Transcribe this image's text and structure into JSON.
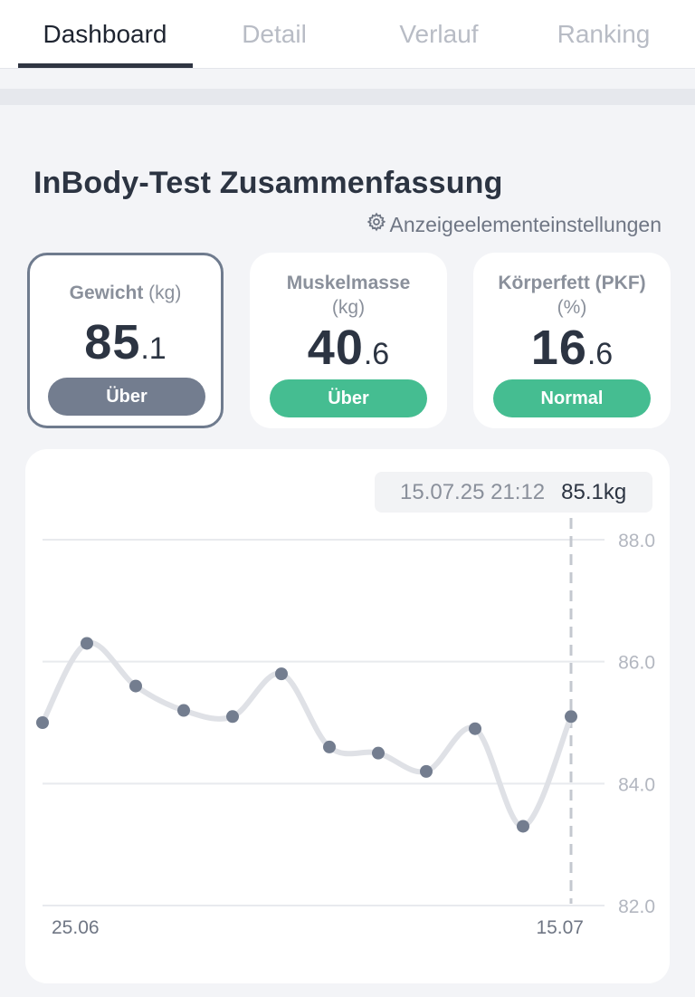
{
  "tabs": [
    {
      "label": "Dashboard",
      "active": true
    },
    {
      "label": "Detail",
      "active": false
    },
    {
      "label": "Verlauf",
      "active": false
    },
    {
      "label": "Ranking",
      "active": false
    }
  ],
  "section": {
    "title": "InBody-Test Zusammenfassung",
    "settings_label": "Anzeigeelementeinstellungen",
    "settings_icon": "gear-icon"
  },
  "metrics": [
    {
      "label": "Gewicht",
      "unit": "(kg)",
      "int": "85",
      "dec": ".1",
      "badge": "Über",
      "badge_color": "#737d8f",
      "selected": true
    },
    {
      "label": "Muskelmasse",
      "unit": "(kg)",
      "int": "40",
      "dec": ".6",
      "badge": "Über",
      "badge_color": "#45bd91",
      "selected": false
    },
    {
      "label": "Körperfett (PKF)",
      "unit": "(%)",
      "int": "16",
      "dec": ".6",
      "badge": "Normal",
      "badge_color": "#45bd91",
      "selected": false
    }
  ],
  "tooltip": {
    "date": "15.07.25 21:12",
    "value": "85.1kg"
  },
  "chart_data": {
    "type": "line",
    "y_ticks": [
      "88.0",
      "86.0",
      "84.0",
      "82.0"
    ],
    "ylim": [
      82,
      88
    ],
    "x_labels": [
      "25.06",
      "15.07"
    ],
    "values": [
      85.0,
      86.3,
      85.6,
      85.2,
      85.1,
      85.8,
      84.6,
      84.5,
      84.2,
      84.9,
      83.3,
      85.1
    ],
    "selected_index": 11,
    "line_color": "#dfe1e6",
    "point_color": "#737d8f",
    "grid": true
  }
}
